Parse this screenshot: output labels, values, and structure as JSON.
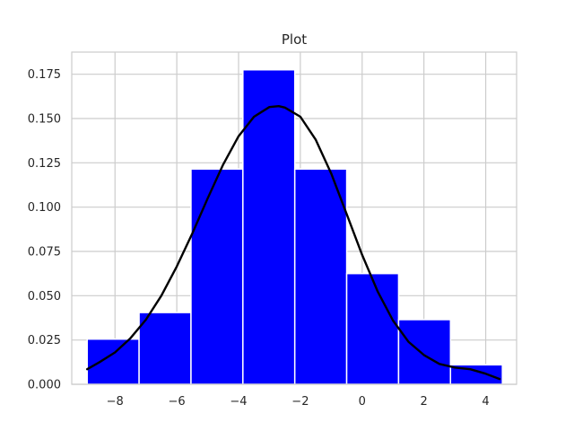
{
  "chart_data": {
    "type": "bar",
    "title": "Plot",
    "xlabel": "",
    "ylabel": "",
    "xlim": [
      -9.4,
      5.0
    ],
    "ylim": [
      0,
      0.1875
    ],
    "grid": true,
    "x_ticks": [
      {
        "value": -8,
        "label": "−8"
      },
      {
        "value": -6,
        "label": "−6"
      },
      {
        "value": -4,
        "label": "−4"
      },
      {
        "value": -2,
        "label": "−2"
      },
      {
        "value": 0,
        "label": "0"
      },
      {
        "value": 2,
        "label": "2"
      },
      {
        "value": 4,
        "label": "4"
      }
    ],
    "y_ticks": [
      {
        "value": 0.0,
        "label": "0.000"
      },
      {
        "value": 0.025,
        "label": "0.025"
      },
      {
        "value": 0.05,
        "label": "0.050"
      },
      {
        "value": 0.075,
        "label": "0.075"
      },
      {
        "value": 0.1,
        "label": "0.100"
      },
      {
        "value": 0.125,
        "label": "0.125"
      },
      {
        "value": 0.15,
        "label": "0.150"
      },
      {
        "value": 0.175,
        "label": "0.175"
      }
    ],
    "bins": [
      {
        "start": -8.9,
        "end": -7.22,
        "density": 0.0255
      },
      {
        "start": -7.22,
        "end": -5.54,
        "density": 0.0405
      },
      {
        "start": -5.54,
        "end": -3.86,
        "density": 0.1215
      },
      {
        "start": -3.86,
        "end": -2.18,
        "density": 0.1775
      },
      {
        "start": -2.18,
        "end": -0.5,
        "density": 0.1215
      },
      {
        "start": -0.5,
        "end": 1.18,
        "density": 0.0625
      },
      {
        "start": 1.18,
        "end": 2.86,
        "density": 0.0365
      },
      {
        "start": 2.86,
        "end": 4.54,
        "density": 0.011
      }
    ],
    "bar_color": "#0000ff",
    "bar_edge_color": "#ffffff",
    "density_curve": {
      "color": "#000000",
      "x": [
        -8.9,
        -8.5,
        -8.0,
        -7.5,
        -7.0,
        -6.5,
        -6.0,
        -5.5,
        -5.0,
        -4.5,
        -4.0,
        -3.5,
        -3.0,
        -2.7,
        -2.5,
        -2.0,
        -1.5,
        -1.0,
        -0.5,
        0.0,
        0.5,
        1.0,
        1.5,
        2.0,
        2.5,
        3.0,
        3.5,
        4.0,
        4.45
      ],
      "y": [
        0.0085,
        0.0125,
        0.018,
        0.026,
        0.0365,
        0.05,
        0.0665,
        0.085,
        0.105,
        0.124,
        0.14,
        0.151,
        0.1565,
        0.157,
        0.1562,
        0.151,
        0.138,
        0.119,
        0.096,
        0.073,
        0.0525,
        0.036,
        0.024,
        0.0165,
        0.0115,
        0.0095,
        0.0085,
        0.006,
        0.003
      ]
    }
  }
}
